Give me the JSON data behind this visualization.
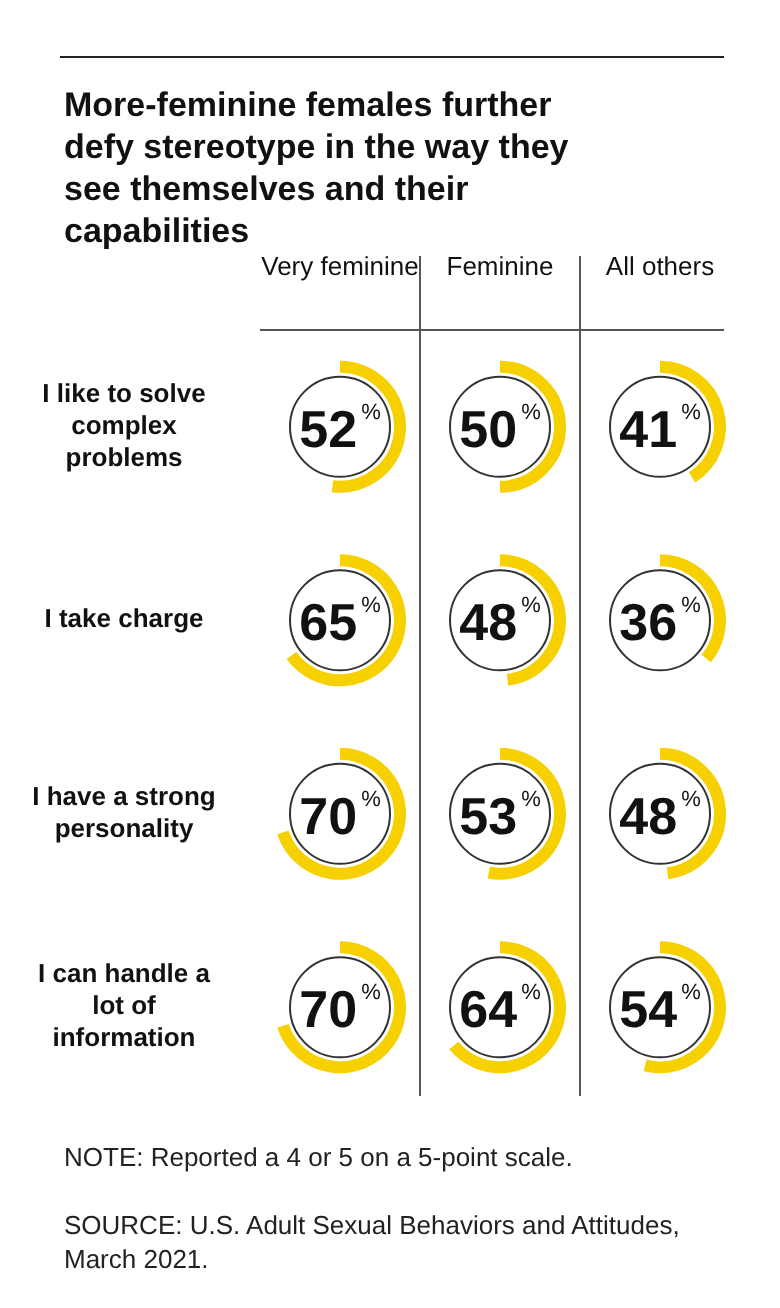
{
  "chart_data": {
    "type": "heatmap",
    "title": "More-feminine females further defy stereotype in the way they see themselves and their capabilities",
    "categories": [
      "Very feminine",
      "Feminine",
      "All others"
    ],
    "y_categories": [
      "I like to solve complex problems",
      "I take charge",
      "I have a strong personality",
      "I can handle a lot of information"
    ],
    "cells": [
      [
        52,
        50,
        41
      ],
      [
        65,
        48,
        36
      ],
      [
        70,
        53,
        48
      ],
      [
        70,
        64,
        54
      ]
    ],
    "cell_labels": [
      [
        "52%",
        "50%",
        "41%"
      ],
      [
        "65%",
        "48%",
        "36%"
      ],
      [
        "70%",
        "53%",
        "48%"
      ],
      [
        "70%",
        "64%",
        "54%"
      ]
    ],
    "color": "#f7d000",
    "annotations": [
      "NOTE: Reported a 4 or 5 on a 5-point scale.",
      "SOURCE: U.S. Adult Sexual Behaviors and Attitudes, March 2021."
    ]
  }
}
